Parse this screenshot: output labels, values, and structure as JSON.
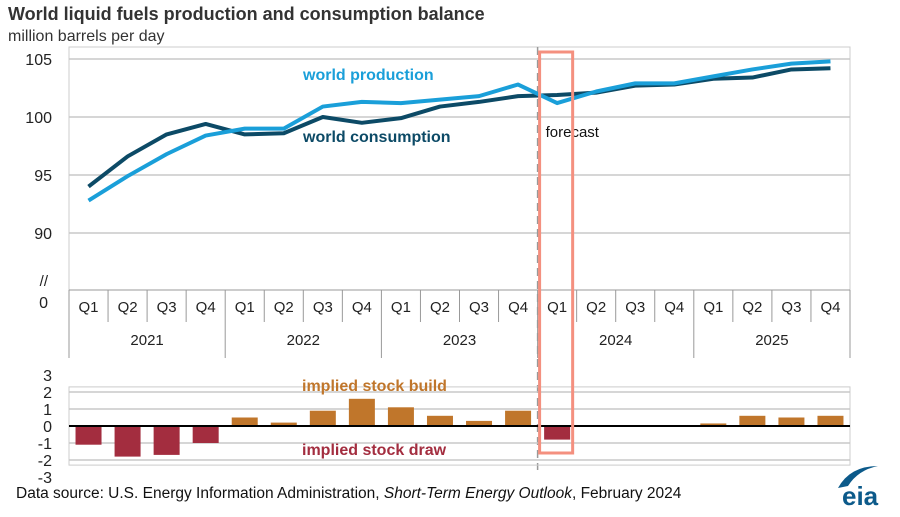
{
  "title": "World liquid fuels production and consumption balance",
  "subtitle": "million barrels per day",
  "source": {
    "prefix": "Data source: U.S. Energy Information Administration, ",
    "italic": "Short-Term Energy Outlook",
    "suffix": ", February 2024"
  },
  "logo": "eia",
  "chart_data": [
    {
      "type": "line",
      "title": "World liquid fuels production and consumption balance",
      "ylabel": "million barrels per day",
      "ylim": [
        90,
        105
      ],
      "yticks": [
        "105",
        "100",
        "95",
        "90"
      ],
      "axis_break_label": "//",
      "zero_label": "0",
      "quarters": [
        "Q1",
        "Q2",
        "Q3",
        "Q4",
        "Q1",
        "Q2",
        "Q3",
        "Q4",
        "Q1",
        "Q2",
        "Q3",
        "Q4",
        "Q1",
        "Q2",
        "Q3",
        "Q4",
        "Q1",
        "Q2",
        "Q3",
        "Q4"
      ],
      "years": [
        "2021",
        "2022",
        "2023",
        "2024",
        "2025"
      ],
      "forecast_label": "forecast",
      "forecast_start_index": 12,
      "series": [
        {
          "name": "world production",
          "color": "#1a9fd9",
          "values": [
            92.8,
            94.9,
            96.8,
            98.4,
            99.0,
            99.0,
            100.9,
            101.3,
            101.2,
            101.5,
            101.8,
            102.8,
            101.2,
            102.2,
            102.9,
            102.9,
            103.5,
            104.1,
            104.6,
            104.8
          ]
        },
        {
          "name": "world consumption",
          "color": "#0c4a66",
          "values": [
            94.0,
            96.6,
            98.5,
            99.4,
            98.5,
            98.6,
            100.0,
            99.5,
            99.9,
            100.9,
            101.3,
            101.8,
            101.9,
            102.1,
            102.7,
            102.8,
            103.3,
            103.4,
            104.1,
            104.2
          ]
        }
      ]
    },
    {
      "type": "bar",
      "ylim": [
        -3,
        3
      ],
      "yticks": [
        "3",
        "2",
        "1",
        "0",
        "-1",
        "-2",
        "-3"
      ],
      "build_label": "implied stock  build",
      "draw_label": "implied stock draw",
      "build_color": "#c0762b",
      "draw_color": "#a32d3f",
      "values": [
        -1.1,
        -1.8,
        -1.7,
        -1.0,
        0.5,
        0.2,
        0.9,
        1.6,
        1.1,
        0.6,
        0.3,
        0.9,
        -0.8,
        0.05,
        0.05,
        0.0,
        0.15,
        0.6,
        0.5,
        0.6
      ]
    }
  ]
}
